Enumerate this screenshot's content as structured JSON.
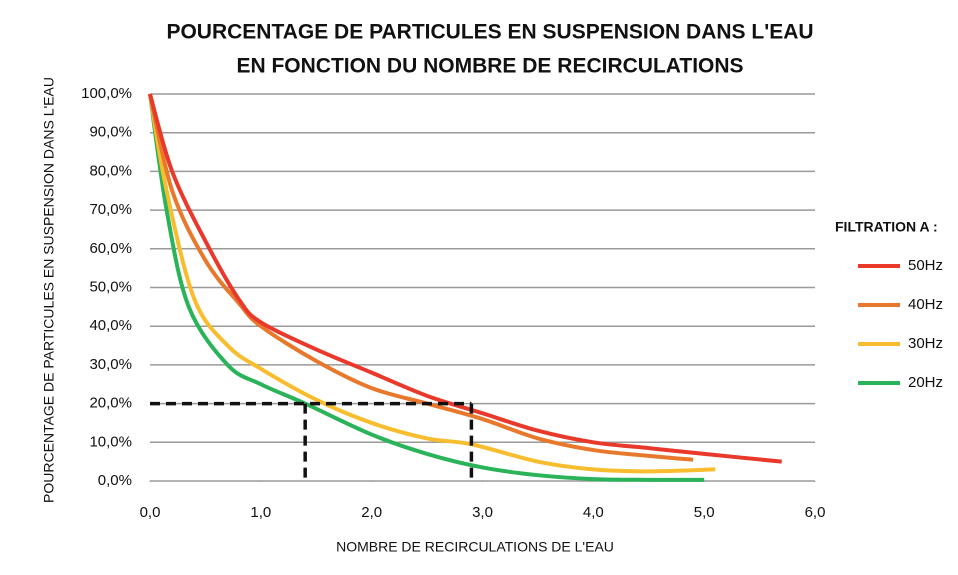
{
  "chart_data": {
    "type": "line",
    "title": [
      "POURCENTAGE DE PARTICULES EN SUSPENSION DANS L'EAU",
      "EN FONCTION DU NOMBRE DE RECIRCULATIONS"
    ],
    "xlabel": "NOMBRE DE RECIRCULATIONS DE L'EAU",
    "ylabel": "POURCENTAGE DE PARTICULES EN SUSPENSION DANS L'EAU",
    "legend_title": "FILTRATION A :",
    "legend": "right",
    "grid": true,
    "xlim": [
      0,
      6
    ],
    "ylim": [
      0,
      100
    ],
    "xticks": [
      {
        "value": 0,
        "label": "0,0"
      },
      {
        "value": 1,
        "label": "1,0"
      },
      {
        "value": 2,
        "label": "2,0"
      },
      {
        "value": 3,
        "label": "3,0"
      },
      {
        "value": 4,
        "label": "4,0"
      },
      {
        "value": 5,
        "label": "5,0"
      },
      {
        "value": 6,
        "label": "6,0"
      }
    ],
    "yticks": [
      {
        "value": 0,
        "label": "0,0%"
      },
      {
        "value": 10,
        "label": "10,0%"
      },
      {
        "value": 20,
        "label": "20,0%"
      },
      {
        "value": 30,
        "label": "30,0%"
      },
      {
        "value": 40,
        "label": "40,0%"
      },
      {
        "value": 50,
        "label": "50,0%"
      },
      {
        "value": 60,
        "label": "60,0%"
      },
      {
        "value": 70,
        "label": "70,0%"
      },
      {
        "value": 80,
        "label": "80,0%"
      },
      {
        "value": 90,
        "label": "90,0%"
      },
      {
        "value": 100,
        "label": "100,0%"
      }
    ],
    "series": [
      {
        "name": "50Hz",
        "color": "#e8392b",
        "x": [
          0,
          0.2,
          0.5,
          0.8,
          1,
          1.5,
          2,
          2.5,
          3,
          3.5,
          4,
          4.5,
          5,
          5.7
        ],
        "values": [
          100,
          80,
          62,
          47,
          41,
          34,
          28,
          22,
          17.5,
          13,
          10,
          8.5,
          7,
          5
        ]
      },
      {
        "name": "40Hz",
        "color": "#e8782b",
        "x": [
          0,
          0.2,
          0.5,
          0.8,
          1,
          1.5,
          2,
          2.5,
          3,
          3.5,
          4,
          4.5,
          4.9
        ],
        "values": [
          100,
          75,
          57,
          46,
          40,
          31,
          24,
          20,
          16,
          11,
          8,
          6.5,
          5.5
        ]
      },
      {
        "name": "30Hz",
        "color": "#f7bd2e",
        "x": [
          0,
          0.15,
          0.4,
          0.7,
          1,
          1.5,
          2,
          2.5,
          2.9,
          3.5,
          4,
          4.5,
          5.1
        ],
        "values": [
          100,
          75,
          47,
          35,
          29,
          21,
          15,
          11,
          9.5,
          5,
          3,
          2.5,
          3
        ]
      },
      {
        "name": "20Hz",
        "color": "#2bb35a",
        "x": [
          0,
          0.15,
          0.35,
          0.7,
          1,
          1.4,
          2,
          2.5,
          3,
          3.5,
          4,
          4.5,
          5
        ],
        "values": [
          100,
          70,
          45,
          30,
          25,
          20,
          12,
          7,
          3.5,
          1.5,
          0.5,
          0.3,
          0.3
        ]
      }
    ],
    "guides": [
      {
        "x": 1.4,
        "y": 20
      },
      {
        "x": 2.9,
        "y": 20
      }
    ]
  }
}
